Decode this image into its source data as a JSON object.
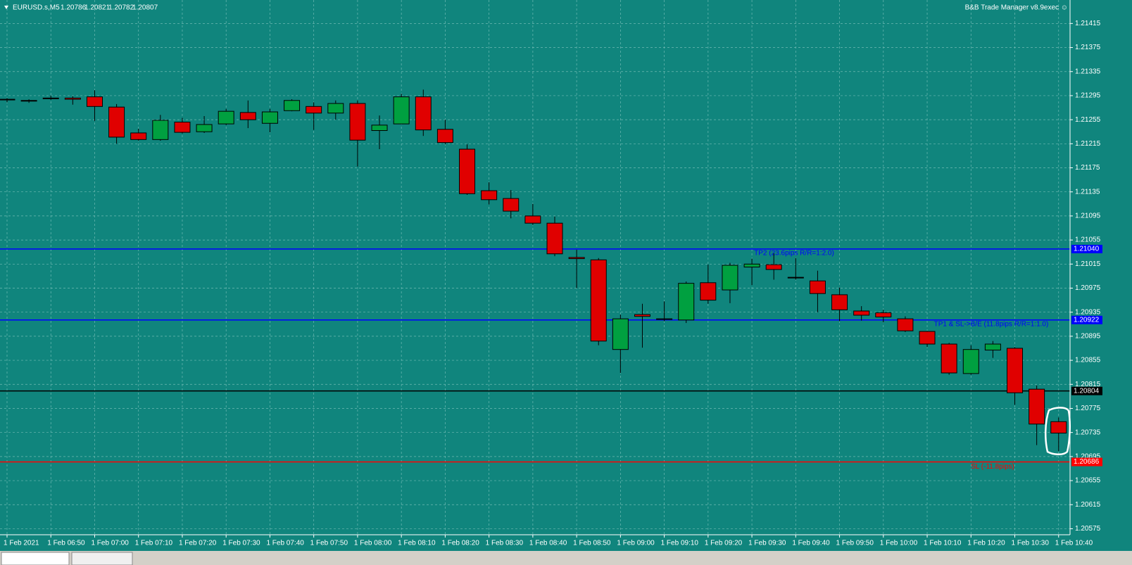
{
  "chart_data": {
    "type": "candlestick",
    "symbol": "EURUSD.s,M5",
    "quote": [
      1.20786,
      1.20821,
      1.20782,
      1.20807
    ],
    "indicator": "B&B Trade Manager v8.9exec ☺",
    "categories": [
      "1 Feb 2021",
      null,
      "1 Feb 06:50",
      null,
      "1 Feb 07:00",
      null,
      "1 Feb 07:10",
      null,
      "1 Feb 07:20",
      null,
      "1 Feb 07:30",
      null,
      "1 Feb 07:40",
      null,
      "1 Feb 07:50",
      null,
      "1 Feb 08:00",
      null,
      "1 Feb 08:10",
      null,
      "1 Feb 08:20",
      null,
      "1 Feb 08:30",
      null,
      "1 Feb 08:40",
      null,
      "1 Feb 08:50",
      null,
      "1 Feb 09:00",
      null,
      "1 Feb 09:10",
      null,
      "1 Feb 09:20",
      null,
      "1 Feb 09:30",
      null,
      "1 Feb 09:40",
      null,
      "1 Feb 09:50",
      null,
      "1 Feb 10:00",
      null,
      "1 Feb 10:10",
      null,
      "1 Feb 10:20",
      null,
      "1 Feb 10:30",
      null,
      "1 Feb 10:40"
    ],
    "open": [
      1.21289,
      1.21287,
      1.21291,
      1.21291,
      1.21293,
      1.21276,
      1.21233,
      1.21222,
      1.21251,
      1.21235,
      1.21248,
      1.21267,
      1.21249,
      1.2127,
      1.21277,
      1.21266,
      1.21282,
      1.21237,
      1.21248,
      1.21293,
      1.21239,
      1.21206,
      1.21137,
      1.21124,
      1.21095,
      1.21083,
      1.21026,
      1.21022,
      1.20873,
      1.20931,
      1.20923,
      1.20922,
      1.20984,
      1.20972,
      1.2101,
      1.21014,
      1.20993,
      1.20987,
      1.20964,
      1.20937,
      1.20934,
      1.20924,
      1.20903,
      1.20882,
      1.20833,
      1.20872,
      1.20875,
      1.20807,
      1.20753
    ],
    "high": [
      1.21291,
      1.21289,
      1.21295,
      1.21294,
      1.21304,
      1.21281,
      1.2124,
      1.21263,
      1.21258,
      1.21261,
      1.21273,
      1.21287,
      1.21273,
      1.21289,
      1.21284,
      1.21287,
      1.21287,
      1.21262,
      1.21298,
      1.21305,
      1.21255,
      1.21214,
      1.21151,
      1.21138,
      1.21115,
      1.21094,
      1.21039,
      1.21025,
      1.20931,
      1.20949,
      1.20953,
      1.20986,
      1.21014,
      1.21017,
      1.21024,
      1.21033,
      1.21025,
      1.21004,
      1.20976,
      1.20945,
      1.20939,
      1.20928,
      1.20904,
      1.20884,
      1.2088,
      1.20887,
      1.20877,
      1.20813,
      1.2076
    ],
    "low": [
      1.21284,
      1.21283,
      1.21288,
      1.2128,
      1.21253,
      1.21215,
      1.2122,
      1.2122,
      1.21232,
      1.21233,
      1.21246,
      1.21241,
      1.21234,
      1.21269,
      1.21238,
      1.21255,
      1.21177,
      1.21206,
      1.21248,
      1.21228,
      1.21214,
      1.2113,
      1.21114,
      1.21091,
      1.2108,
      1.21028,
      1.20975,
      1.2088,
      1.20834,
      1.20876,
      1.2092,
      1.20917,
      1.20949,
      1.2095,
      1.2098,
      1.20989,
      1.20989,
      1.20935,
      1.2092,
      1.20921,
      1.20918,
      1.20902,
      1.20877,
      1.20831,
      1.20831,
      1.20859,
      1.20781,
      1.20714,
      1.20704
    ],
    "close": [
      1.21288,
      1.21287,
      1.2129,
      1.21289,
      1.21277,
      1.21226,
      1.21222,
      1.21254,
      1.21234,
      1.21247,
      1.21269,
      1.21255,
      1.21268,
      1.21287,
      1.21266,
      1.21282,
      1.21221,
      1.21246,
      1.21293,
      1.21238,
      1.21217,
      1.21132,
      1.21122,
      1.21103,
      1.21083,
      1.21032,
      1.21024,
      1.20887,
      1.20924,
      1.20928,
      1.20924,
      1.20983,
      1.20955,
      1.21013,
      1.21015,
      1.21006,
      1.20992,
      1.20966,
      1.20939,
      1.2093,
      1.20927,
      1.20904,
      1.20882,
      1.20834,
      1.20873,
      1.20882,
      1.20801,
      1.20749,
      1.20734
    ],
    "up_color": "#00a040",
    "down_color": "#e00000",
    "ylim": [
      1.20565,
      1.21454
    ],
    "yticks": [
      1.21415,
      1.21375,
      1.21335,
      1.21295,
      1.21255,
      1.21215,
      1.21175,
      1.21135,
      1.21095,
      1.21055,
      1.21015,
      1.20975,
      1.20935,
      1.20895,
      1.20855,
      1.20815,
      1.20775,
      1.20735,
      1.20695,
      1.20655,
      1.20615,
      1.20575
    ],
    "grid": true,
    "levels": [
      {
        "name": "TP2 (23.6pips R/R=1:2.0)",
        "price": {
          "value": 1.2104,
          "label": "1.21040"
        },
        "color": "#0000ff"
      },
      {
        "name": "TP1 & SL->B/E (11.8pips R/R=1:1.0)",
        "price": {
          "value": 1.20922,
          "label": "1.20922"
        },
        "color": "#0000ff"
      },
      {
        "price": {
          "value": 1.20804,
          "label": "1.20804"
        },
        "color": "#000000"
      },
      {
        "name": "SL (-11.8pips)",
        "price": {
          "value": 1.20686,
          "label": "1.20686"
        },
        "color": "#ff0000"
      }
    ]
  }
}
